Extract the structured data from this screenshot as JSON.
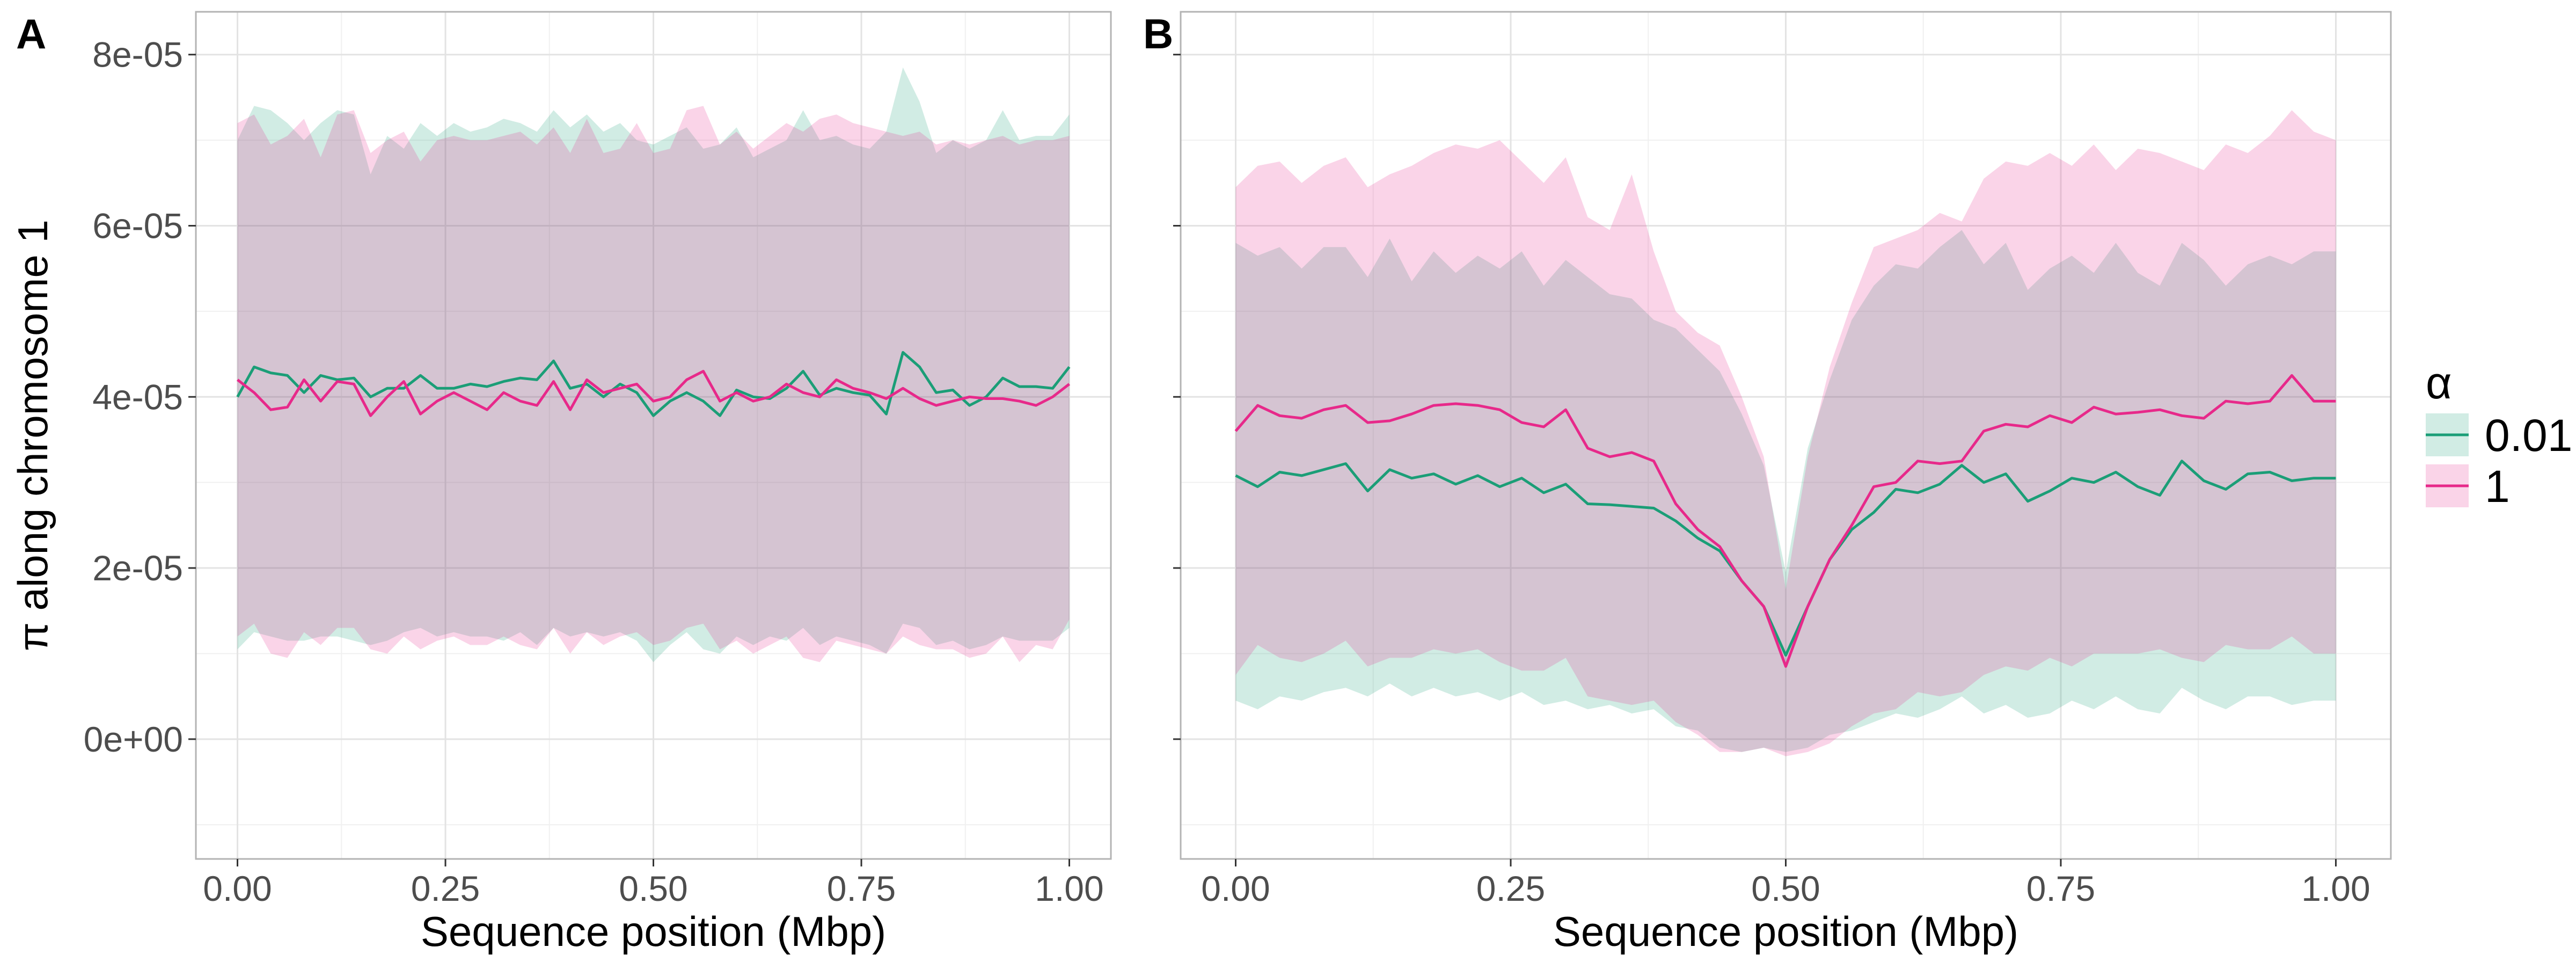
{
  "chart_data": [
    {
      "type": "area",
      "panel_tag": "A",
      "xlabel": "Sequence position (Mbp)",
      "ylabel": "π along chromosome 1",
      "xlim": [
        -0.05,
        1.05
      ],
      "ylim": [
        -1.4e-05,
        8.5e-05
      ],
      "x_ticks": [
        0,
        0.25,
        0.5,
        0.75,
        1
      ],
      "x_tick_labels": [
        "0.00",
        "0.25",
        "0.50",
        "0.75",
        "1.00"
      ],
      "y_ticks": [
        0,
        2e-05,
        4e-05,
        6e-05,
        8e-05
      ],
      "y_tick_labels": [
        "0e+00",
        "2e-05",
        "4e-05",
        "6e-05",
        "8e-05"
      ],
      "grid": true,
      "x": [
        0.0,
        0.02,
        0.04,
        0.06,
        0.08,
        0.1,
        0.12,
        0.14,
        0.16,
        0.18,
        0.2,
        0.22,
        0.24,
        0.26,
        0.28,
        0.3,
        0.32,
        0.34,
        0.36,
        0.38,
        0.4,
        0.42,
        0.44,
        0.46,
        0.48,
        0.5,
        0.52,
        0.54,
        0.56,
        0.58,
        0.6,
        0.62,
        0.64,
        0.66,
        0.68,
        0.7,
        0.72,
        0.74,
        0.76,
        0.78,
        0.8,
        0.82,
        0.84,
        0.86,
        0.88,
        0.9,
        0.92,
        0.94,
        0.96,
        0.98,
        1.0
      ],
      "series": [
        {
          "name": "0.01",
          "color": "#1b9e77",
          "mean": [
            4e-05,
            4.35e-05,
            4.28e-05,
            4.25e-05,
            4.05e-05,
            4.25e-05,
            4.2e-05,
            4.22e-05,
            4e-05,
            4.1e-05,
            4.1e-05,
            4.25e-05,
            4.1e-05,
            4.1e-05,
            4.15e-05,
            4.12e-05,
            4.18e-05,
            4.22e-05,
            4.2e-05,
            4.42e-05,
            4.1e-05,
            4.15e-05,
            4e-05,
            4.15e-05,
            4.05e-05,
            3.78e-05,
            3.95e-05,
            4.05e-05,
            3.95e-05,
            3.78e-05,
            4.08e-05,
            4e-05,
            3.98e-05,
            4.1e-05,
            4.3e-05,
            4.02e-05,
            4.1e-05,
            4.05e-05,
            4.02e-05,
            3.8e-05,
            4.52e-05,
            4.35e-05,
            4.05e-05,
            4.08e-05,
            3.9e-05,
            4e-05,
            4.22e-05,
            4.12e-05,
            4.12e-05,
            4.1e-05,
            4.35e-05
          ],
          "upper": [
            7e-05,
            7.4e-05,
            7.35e-05,
            7.2e-05,
            7e-05,
            7.2e-05,
            7.35e-05,
            7.3e-05,
            6.6e-05,
            7.05e-05,
            6.9e-05,
            7.2e-05,
            7.05e-05,
            7.2e-05,
            7.1e-05,
            7.15e-05,
            7.25e-05,
            7.2e-05,
            7.1e-05,
            7.35e-05,
            7.15e-05,
            7.3e-05,
            7.1e-05,
            7.2e-05,
            7e-05,
            6.95e-05,
            7.05e-05,
            7.15e-05,
            6.9e-05,
            6.95e-05,
            7.15e-05,
            6.8e-05,
            6.9e-05,
            7e-05,
            7.35e-05,
            7e-05,
            7.05e-05,
            6.95e-05,
            6.9e-05,
            7.1e-05,
            7.85e-05,
            7.45e-05,
            6.85e-05,
            7e-05,
            6.9e-05,
            7e-05,
            7.35e-05,
            7e-05,
            7.05e-05,
            7.05e-05,
            7.3e-05
          ],
          "lower": [
            1.05e-05,
            1.25e-05,
            1.2e-05,
            1.15e-05,
            1.15e-05,
            1.2e-05,
            1.2e-05,
            1.15e-05,
            1.1e-05,
            1.15e-05,
            1.25e-05,
            1.3e-05,
            1.2e-05,
            1.25e-05,
            1.2e-05,
            1.2e-05,
            1.15e-05,
            1.25e-05,
            1.1e-05,
            1.3e-05,
            1.2e-05,
            1.25e-05,
            1.2e-05,
            1.25e-05,
            1.15e-05,
            9e-06,
            1.1e-05,
            1.25e-05,
            1.05e-05,
            1e-05,
            1.2e-05,
            1.1e-05,
            1.2e-05,
            1.15e-05,
            1.3e-05,
            1.1e-05,
            1.2e-05,
            1.15e-05,
            1.1e-05,
            1e-05,
            1.35e-05,
            1.3e-05,
            1.1e-05,
            1.15e-05,
            1.05e-05,
            1.1e-05,
            1.2e-05,
            1.15e-05,
            1.15e-05,
            1.15e-05,
            1.3e-05
          ]
        },
        {
          "name": "1",
          "color": "#e7298a",
          "mean": [
            4.2e-05,
            4.05e-05,
            3.85e-05,
            3.88e-05,
            4.2e-05,
            3.95e-05,
            4.18e-05,
            4.15e-05,
            3.78e-05,
            4e-05,
            4.18e-05,
            3.8e-05,
            3.95e-05,
            4.05e-05,
            3.95e-05,
            3.85e-05,
            4.05e-05,
            3.95e-05,
            3.9e-05,
            4.18e-05,
            3.85e-05,
            4.2e-05,
            4.05e-05,
            4.1e-05,
            4.15e-05,
            3.95e-05,
            4e-05,
            4.2e-05,
            4.3e-05,
            3.95e-05,
            4.05e-05,
            3.95e-05,
            4e-05,
            4.15e-05,
            4.05e-05,
            4e-05,
            4.2e-05,
            4.1e-05,
            4.05e-05,
            3.98e-05,
            4.1e-05,
            3.98e-05,
            3.9e-05,
            3.95e-05,
            4e-05,
            3.98e-05,
            3.98e-05,
            3.95e-05,
            3.9e-05,
            4e-05,
            4.15e-05
          ],
          "upper": [
            7.2e-05,
            7.3e-05,
            6.95e-05,
            7.05e-05,
            7.25e-05,
            6.8e-05,
            7.3e-05,
            7.35e-05,
            6.85e-05,
            7e-05,
            7.1e-05,
            6.75e-05,
            7e-05,
            7.05e-05,
            7e-05,
            7e-05,
            7.05e-05,
            7.1e-05,
            6.95e-05,
            7.15e-05,
            6.85e-05,
            7.25e-05,
            6.85e-05,
            6.9e-05,
            7.2e-05,
            6.85e-05,
            6.9e-05,
            7.35e-05,
            7.4e-05,
            6.95e-05,
            7.1e-05,
            6.9e-05,
            7.05e-05,
            7.2e-05,
            7.1e-05,
            7.25e-05,
            7.3e-05,
            7.2e-05,
            7.15e-05,
            7.1e-05,
            7.05e-05,
            7.1e-05,
            6.95e-05,
            7e-05,
            6.95e-05,
            7e-05,
            7.05e-05,
            6.95e-05,
            7e-05,
            7e-05,
            7.05e-05
          ],
          "lower": [
            1.2e-05,
            1.35e-05,
            1e-05,
            9.5e-06,
            1.25e-05,
            1.1e-05,
            1.3e-05,
            1.3e-05,
            1.05e-05,
            1e-05,
            1.2e-05,
            1.05e-05,
            1.15e-05,
            1.2e-05,
            1.1e-05,
            1.1e-05,
            1.2e-05,
            1.1e-05,
            1.05e-05,
            1.3e-05,
            1e-05,
            1.25e-05,
            1.1e-05,
            1.2e-05,
            1.25e-05,
            1.1e-05,
            1.15e-05,
            1.3e-05,
            1.35e-05,
            1.05e-05,
            1.15e-05,
            1e-05,
            1.1e-05,
            1.2e-05,
            9.5e-06,
            9e-06,
            1.15e-05,
            1.1e-05,
            1.05e-05,
            1e-05,
            1.2e-05,
            1.1e-05,
            1.05e-05,
            1.05e-05,
            9.5e-06,
            1e-05,
            1.2e-05,
            9e-06,
            1.1e-05,
            1.05e-05,
            1.4e-05
          ]
        }
      ]
    },
    {
      "type": "area",
      "panel_tag": "B",
      "xlabel": "Sequence position (Mbp)",
      "ylabel": "",
      "xlim": [
        -0.05,
        1.05
      ],
      "ylim": [
        -1.4e-05,
        8.5e-05
      ],
      "x_ticks": [
        0,
        0.25,
        0.5,
        0.75,
        1
      ],
      "x_tick_labels": [
        "0.00",
        "0.25",
        "0.50",
        "0.75",
        "1.00"
      ],
      "y_ticks": [
        0,
        2e-05,
        4e-05,
        6e-05,
        8e-05
      ],
      "y_tick_labels": [
        "",
        "",
        "",
        "",
        ""
      ],
      "grid": true,
      "x": [
        0.0,
        0.02,
        0.04,
        0.06,
        0.08,
        0.1,
        0.12,
        0.14,
        0.16,
        0.18,
        0.2,
        0.22,
        0.24,
        0.26,
        0.28,
        0.3,
        0.32,
        0.34,
        0.36,
        0.38,
        0.4,
        0.42,
        0.44,
        0.46,
        0.48,
        0.5,
        0.52,
        0.54,
        0.56,
        0.58,
        0.6,
        0.62,
        0.64,
        0.66,
        0.68,
        0.7,
        0.72,
        0.74,
        0.76,
        0.78,
        0.8,
        0.82,
        0.84,
        0.86,
        0.88,
        0.9,
        0.92,
        0.94,
        0.96,
        0.98,
        1.0
      ],
      "series": [
        {
          "name": "0.01",
          "color": "#1b9e77",
          "mean": [
            3.08e-05,
            2.95e-05,
            3.12e-05,
            3.08e-05,
            3.15e-05,
            3.22e-05,
            2.9e-05,
            3.15e-05,
            3.05e-05,
            3.1e-05,
            2.98e-05,
            3.08e-05,
            2.95e-05,
            3.05e-05,
            2.88e-05,
            2.98e-05,
            2.75e-05,
            2.74e-05,
            2.72e-05,
            2.7e-05,
            2.55e-05,
            2.35e-05,
            2.2e-05,
            1.85e-05,
            1.55e-05,
            9.8e-06,
            1.55e-05,
            2.1e-05,
            2.45e-05,
            2.65e-05,
            2.92e-05,
            2.88e-05,
            2.98e-05,
            3.2e-05,
            3e-05,
            3.1e-05,
            2.78e-05,
            2.9e-05,
            3.05e-05,
            3e-05,
            3.12e-05,
            2.95e-05,
            2.85e-05,
            3.25e-05,
            3.02e-05,
            2.92e-05,
            3.1e-05,
            3.12e-05,
            3.02e-05,
            3.05e-05,
            3.05e-05
          ],
          "upper": [
            5.8e-05,
            5.65e-05,
            5.75e-05,
            5.5e-05,
            5.75e-05,
            5.75e-05,
            5.4e-05,
            5.85e-05,
            5.35e-05,
            5.7e-05,
            5.45e-05,
            5.65e-05,
            5.5e-05,
            5.7e-05,
            5.3e-05,
            5.6e-05,
            5.4e-05,
            5.2e-05,
            5.15e-05,
            4.9e-05,
            4.8e-05,
            4.55e-05,
            4.3e-05,
            3.8e-05,
            3.2e-05,
            1.95e-05,
            3.4e-05,
            4.2e-05,
            4.9e-05,
            5.3e-05,
            5.55e-05,
            5.5e-05,
            5.75e-05,
            5.95e-05,
            5.55e-05,
            5.8e-05,
            5.25e-05,
            5.5e-05,
            5.65e-05,
            5.45e-05,
            5.8e-05,
            5.45e-05,
            5.3e-05,
            5.8e-05,
            5.6e-05,
            5.3e-05,
            5.55e-05,
            5.65e-05,
            5.55e-05,
            5.7e-05,
            5.7e-05
          ],
          "lower": [
            4.5e-06,
            3.5e-06,
            5e-06,
            4.5e-06,
            5.5e-06,
            6e-06,
            5e-06,
            6.5e-06,
            5e-06,
            6e-06,
            5e-06,
            5.5e-06,
            4.5e-06,
            5.5e-06,
            4e-06,
            4.5e-06,
            3.5e-06,
            4e-06,
            3e-06,
            3.5e-06,
            1.5e-06,
            1e-06,
            -1e-06,
            -1.5e-06,
            -1e-06,
            -1.5e-06,
            -1e-06,
            5e-07,
            1e-06,
            2e-06,
            3e-06,
            2.5e-06,
            3.5e-06,
            5e-06,
            3e-06,
            4e-06,
            2.5e-06,
            3e-06,
            4.5e-06,
            3.5e-06,
            5e-06,
            3.5e-06,
            3e-06,
            6e-06,
            4.5e-06,
            3.5e-06,
            5e-06,
            5e-06,
            4e-06,
            4.5e-06,
            4.5e-06
          ]
        },
        {
          "name": "1",
          "color": "#e7298a",
          "mean": [
            3.6e-05,
            3.9e-05,
            3.78e-05,
            3.75e-05,
            3.85e-05,
            3.9e-05,
            3.7e-05,
            3.72e-05,
            3.8e-05,
            3.9e-05,
            3.92e-05,
            3.9e-05,
            3.85e-05,
            3.7e-05,
            3.65e-05,
            3.85e-05,
            3.4e-05,
            3.3e-05,
            3.35e-05,
            3.25e-05,
            2.75e-05,
            2.45e-05,
            2.25e-05,
            1.85e-05,
            1.55e-05,
            8.5e-06,
            1.55e-05,
            2.1e-05,
            2.5e-05,
            2.95e-05,
            3e-05,
            3.25e-05,
            3.22e-05,
            3.25e-05,
            3.6e-05,
            3.68e-05,
            3.65e-05,
            3.78e-05,
            3.7e-05,
            3.88e-05,
            3.8e-05,
            3.82e-05,
            3.85e-05,
            3.78e-05,
            3.75e-05,
            3.95e-05,
            3.92e-05,
            3.95e-05,
            4.25e-05,
            3.95e-05,
            3.95e-05
          ],
          "upper": [
            6.45e-05,
            6.7e-05,
            6.75e-05,
            6.5e-05,
            6.7e-05,
            6.8e-05,
            6.45e-05,
            6.6e-05,
            6.7e-05,
            6.85e-05,
            6.95e-05,
            6.9e-05,
            7e-05,
            6.75e-05,
            6.5e-05,
            6.8e-05,
            6.1e-05,
            5.95e-05,
            6.6e-05,
            5.7e-05,
            5e-05,
            4.75e-05,
            4.6e-05,
            4e-05,
            3.3e-05,
            1.75e-05,
            3.3e-05,
            4.35e-05,
            5.1e-05,
            5.75e-05,
            5.85e-05,
            5.95e-05,
            6.15e-05,
            6.05e-05,
            6.55e-05,
            6.75e-05,
            6.7e-05,
            6.85e-05,
            6.7e-05,
            6.95e-05,
            6.65e-05,
            6.9e-05,
            6.85e-05,
            6.75e-05,
            6.65e-05,
            6.95e-05,
            6.85e-05,
            7.05e-05,
            7.35e-05,
            7.1e-05,
            7e-05
          ],
          "lower": [
            7.5e-06,
            1.1e-05,
            9.5e-06,
            9e-06,
            1e-05,
            1.15e-05,
            8.5e-06,
            9.5e-06,
            9.5e-06,
            1.05e-05,
            1e-05,
            1.05e-05,
            9e-06,
            8e-06,
            8e-06,
            9.5e-06,
            5e-06,
            4.5e-06,
            4e-06,
            4.5e-06,
            2e-06,
            5e-07,
            -1.5e-06,
            -1.5e-06,
            -1e-06,
            -2e-06,
            -1.5e-06,
            -5e-07,
            1.5e-06,
            3e-06,
            3.5e-06,
            5.5e-06,
            5e-06,
            5.5e-06,
            7.5e-06,
            8.5e-06,
            8e-06,
            9.5e-06,
            8.5e-06,
            1e-05,
            1e-05,
            1e-05,
            1.05e-05,
            9.5e-06,
            9e-06,
            1.1e-05,
            1.05e-05,
            1.05e-05,
            1.2e-05,
            1e-05,
            1e-05
          ]
        }
      ]
    }
  ],
  "legend": {
    "title": "α",
    "position": "right",
    "items": [
      {
        "label": "0.01",
        "color": "#1b9e77"
      },
      {
        "label": "1",
        "color": "#e7298a"
      }
    ]
  }
}
